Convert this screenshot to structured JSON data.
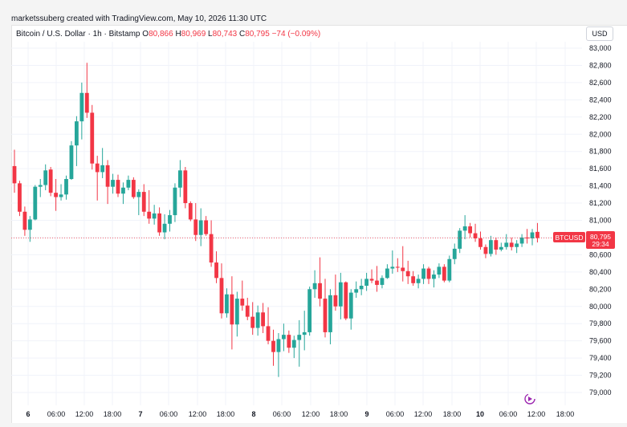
{
  "header": {
    "credit": "marketssuberg created with TradingView.com, May 10, 2026 11:30 UTC"
  },
  "legend": {
    "symbol": "Bitcoin / U.S. Dollar · 1h · Bitstamp",
    "o_key": "O",
    "o_val": "80,866",
    "h_key": "H",
    "h_val": "80,969",
    "l_key": "L",
    "l_val": "80,743",
    "c_key": "C",
    "c_val": "80,795",
    "change": "−74 (−0.09%)"
  },
  "currency_label": "USD",
  "price_label": {
    "ticker": "BTCUSD",
    "price": "80,795",
    "countdown": "29:34"
  },
  "colors": {
    "up": "#26a69a",
    "down": "#f23645",
    "grid": "#f0f3fa"
  },
  "icons": {
    "replay": "replay-icon"
  },
  "chart_data": {
    "type": "candlestick",
    "title": "",
    "xlabel": "",
    "ylabel": "",
    "ylim": [
      78850,
      83100
    ],
    "y_ticks": [
      "83,000",
      "82,800",
      "82,600",
      "82,400",
      "82,200",
      "82,000",
      "81,800",
      "81,600",
      "81,400",
      "81,200",
      "81,000",
      "80,800",
      "80,600",
      "80,400",
      "80,200",
      "80,000",
      "79,800",
      "79,600",
      "79,400",
      "79,200",
      "79,000"
    ],
    "x_ticks": [
      "6",
      "06:00",
      "12:00",
      "18:00",
      "7",
      "06:00",
      "12:00",
      "18:00",
      "8",
      "06:00",
      "12:00",
      "18:00",
      "9",
      "06:00",
      "12:00",
      "18:00",
      "10",
      "06:00",
      "12:00",
      "18:00"
    ],
    "last_price": 80795,
    "candles": [
      [
        81630,
        81820,
        81320,
        81430
      ],
      [
        81430,
        81460,
        81050,
        81100
      ],
      [
        81100,
        81160,
        80820,
        80890
      ],
      [
        80890,
        81050,
        80750,
        81010
      ],
      [
        81010,
        81410,
        81000,
        81390
      ],
      [
        81390,
        81480,
        81270,
        81410
      ],
      [
        81410,
        81650,
        81350,
        81580
      ],
      [
        81590,
        81620,
        81280,
        81320
      ],
      [
        81320,
        81480,
        81110,
        81270
      ],
      [
        81270,
        81420,
        81230,
        81300
      ],
      [
        81300,
        81520,
        81240,
        81480
      ],
      [
        81480,
        81920,
        81470,
        81870
      ],
      [
        81870,
        82210,
        81630,
        82150
      ],
      [
        82150,
        82600,
        81940,
        82480
      ],
      [
        82480,
        82830,
        82190,
        82250
      ],
      [
        82250,
        82340,
        81590,
        81660
      ],
      [
        81660,
        81750,
        81230,
        81560
      ],
      [
        81560,
        81840,
        81490,
        81640
      ],
      [
        81640,
        81700,
        81190,
        81390
      ],
      [
        81390,
        81540,
        81310,
        81470
      ],
      [
        81470,
        81530,
        81270,
        81310
      ],
      [
        81310,
        81440,
        81190,
        81380
      ],
      [
        81380,
        81520,
        81350,
        81470
      ],
      [
        81470,
        81500,
        81250,
        81270
      ],
      [
        81270,
        81360,
        81060,
        81330
      ],
      [
        81330,
        81420,
        81050,
        81100
      ],
      [
        81100,
        81350,
        80960,
        81020
      ],
      [
        81020,
        81180,
        80950,
        81080
      ],
      [
        81080,
        81150,
        80820,
        80860
      ],
      [
        80860,
        81070,
        80780,
        80960
      ],
      [
        80960,
        81120,
        80870,
        81060
      ],
      [
        81060,
        81430,
        80980,
        81380
      ],
      [
        81380,
        81700,
        81270,
        81580
      ],
      [
        81580,
        81620,
        81140,
        81200
      ],
      [
        81200,
        81220,
        80990,
        81010
      ],
      [
        81010,
        81200,
        80760,
        80830
      ],
      [
        80830,
        81140,
        80700,
        81000
      ],
      [
        81000,
        81050,
        80820,
        80840
      ],
      [
        80840,
        81000,
        80460,
        80510
      ],
      [
        80510,
        80640,
        80270,
        80330
      ],
      [
        80330,
        80500,
        79860,
        79920
      ],
      [
        79920,
        80210,
        79870,
        80140
      ],
      [
        80140,
        80350,
        79500,
        79790
      ],
      [
        79790,
        80170,
        79650,
        80090
      ],
      [
        80090,
        80300,
        79950,
        80010
      ],
      [
        80010,
        80100,
        79840,
        79880
      ],
      [
        79880,
        80050,
        79670,
        79750
      ],
      [
        79750,
        80010,
        79660,
        79930
      ],
      [
        79930,
        80040,
        79690,
        79770
      ],
      [
        79770,
        79990,
        79560,
        79600
      ],
      [
        79600,
        79730,
        79310,
        79470
      ],
      [
        79470,
        79690,
        79180,
        79620
      ],
      [
        79620,
        79800,
        79480,
        79670
      ],
      [
        79670,
        79720,
        79460,
        79520
      ],
      [
        79520,
        79660,
        79400,
        79610
      ],
      [
        79610,
        79840,
        79300,
        79670
      ],
      [
        79670,
        79950,
        79490,
        79700
      ],
      [
        79700,
        80230,
        79660,
        80200
      ],
      [
        80200,
        80420,
        80100,
        80270
      ],
      [
        80270,
        80570,
        80000,
        80090
      ],
      [
        80090,
        80320,
        79640,
        79700
      ],
      [
        79700,
        80200,
        79560,
        80130
      ],
      [
        80130,
        80370,
        79950,
        80000
      ],
      [
        80000,
        80390,
        79850,
        80280
      ],
      [
        80280,
        80290,
        79840,
        79860
      ],
      [
        79860,
        80200,
        79730,
        80160
      ],
      [
        80160,
        80290,
        80100,
        80200
      ],
      [
        80200,
        80320,
        80130,
        80240
      ],
      [
        80240,
        80390,
        80180,
        80320
      ],
      [
        80320,
        80430,
        80270,
        80300
      ],
      [
        80300,
        80470,
        80170,
        80250
      ],
      [
        80250,
        80360,
        80210,
        80330
      ],
      [
        80330,
        80490,
        80320,
        80440
      ],
      [
        80440,
        80650,
        80380,
        80460
      ],
      [
        80460,
        80560,
        80400,
        80450
      ],
      [
        80450,
        80700,
        80290,
        80410
      ],
      [
        80410,
        80530,
        80260,
        80350
      ],
      [
        80350,
        80410,
        80240,
        80270
      ],
      [
        80270,
        80370,
        80210,
        80320
      ],
      [
        80320,
        80490,
        80260,
        80440
      ],
      [
        80440,
        80460,
        80260,
        80320
      ],
      [
        80320,
        80420,
        80220,
        80370
      ],
      [
        80370,
        80500,
        80330,
        80460
      ],
      [
        80460,
        80490,
        80280,
        80300
      ],
      [
        80300,
        80590,
        80280,
        80550
      ],
      [
        80550,
        80730,
        80490,
        80670
      ],
      [
        80670,
        80910,
        80620,
        80880
      ],
      [
        80880,
        81060,
        80780,
        80930
      ],
      [
        80930,
        80970,
        80800,
        80850
      ],
      [
        80850,
        80960,
        80750,
        80790
      ],
      [
        80790,
        80870,
        80660,
        80690
      ],
      [
        80690,
        80720,
        80560,
        80610
      ],
      [
        80610,
        80820,
        80580,
        80770
      ],
      [
        80770,
        80800,
        80600,
        80660
      ],
      [
        80660,
        80740,
        80640,
        80690
      ],
      [
        80690,
        80840,
        80660,
        80740
      ],
      [
        80740,
        80800,
        80650,
        80690
      ],
      [
        80690,
        80770,
        80620,
        80730
      ],
      [
        80730,
        80840,
        80690,
        80800
      ],
      [
        80800,
        80900,
        80730,
        80790
      ],
      [
        80790,
        80900,
        80710,
        80860
      ],
      [
        80866,
        80969,
        80743,
        80795
      ]
    ]
  }
}
